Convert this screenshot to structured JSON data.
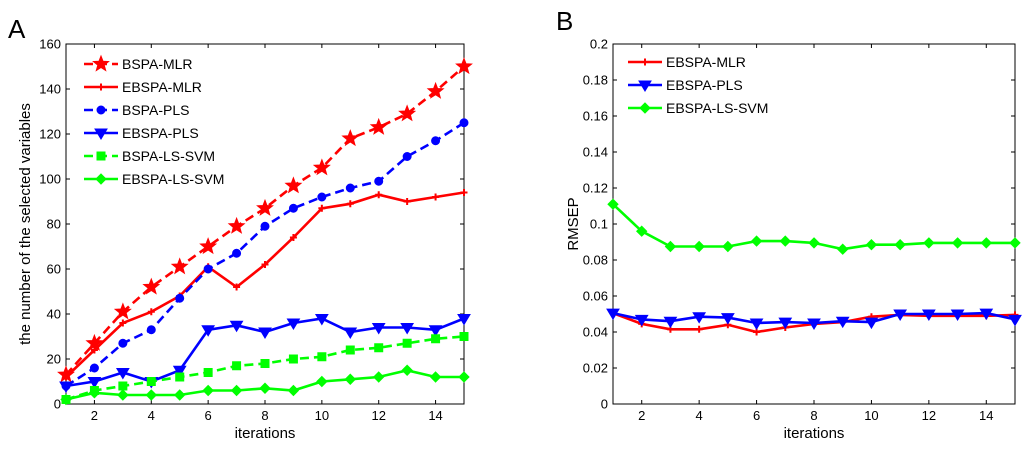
{
  "chart_data": [
    {
      "panel": "A",
      "type": "line",
      "xlabel": "iterations",
      "ylabel": "the number of the selected variables",
      "xlim": [
        1,
        15
      ],
      "ylim": [
        0,
        160
      ],
      "xticks": [
        "2",
        "4",
        "6",
        "8",
        "10",
        "12",
        "14"
      ],
      "yticks": [
        "0",
        "20",
        "40",
        "60",
        "80",
        "100",
        "120",
        "140",
        "160"
      ],
      "x": [
        1,
        2,
        3,
        4,
        5,
        6,
        7,
        8,
        9,
        10,
        11,
        12,
        13,
        14,
        15
      ],
      "series": [
        {
          "name": "BSPA-MLR",
          "color": "#ff0000",
          "dash": true,
          "marker": "star",
          "values": [
            13,
            27,
            41,
            52,
            61,
            70,
            79,
            87,
            97,
            105,
            118,
            123,
            129,
            139,
            150
          ]
        },
        {
          "name": "EBSPA-MLR",
          "color": "#ff0000",
          "dash": false,
          "marker": "plus",
          "values": [
            12,
            24,
            36,
            41,
            48,
            61,
            52,
            62,
            74,
            87,
            89,
            93,
            90,
            92,
            94
          ]
        },
        {
          "name": "BSPA-PLS",
          "color": "#0000ff",
          "dash": true,
          "marker": "circle",
          "values": [
            8,
            16,
            27,
            33,
            47,
            60,
            67,
            79,
            87,
            92,
            96,
            99,
            110,
            117,
            125
          ]
        },
        {
          "name": "EBSPA-PLS",
          "color": "#0000ff",
          "dash": false,
          "marker": "triangle-down",
          "values": [
            8,
            10,
            14,
            10,
            15,
            33,
            35,
            32,
            36,
            38,
            32,
            34,
            34,
            33,
            38
          ]
        },
        {
          "name": "BSPA-LS-SVM",
          "color": "#00ff00",
          "dash": true,
          "marker": "square",
          "values": [
            2,
            6,
            8,
            10,
            12,
            14,
            17,
            18,
            20,
            21,
            24,
            25,
            27,
            29,
            30
          ]
        },
        {
          "name": "EBSPA-LS-SVM",
          "color": "#00ff00",
          "dash": false,
          "marker": "diamond",
          "values": [
            2,
            5,
            4,
            4,
            4,
            6,
            6,
            7,
            6,
            10,
            11,
            12,
            15,
            12,
            12
          ]
        }
      ]
    },
    {
      "panel": "B",
      "type": "line",
      "xlabel": "iterations",
      "ylabel": "RMSEP",
      "xlim": [
        1,
        15
      ],
      "ylim": [
        0,
        0.2
      ],
      "xticks": [
        "2",
        "4",
        "6",
        "8",
        "10",
        "12",
        "14"
      ],
      "yticks": [
        "0",
        "0.02",
        "0.04",
        "0.06",
        "0.08",
        "0.1",
        "0.12",
        "0.14",
        "0.16",
        "0.18",
        "0.2"
      ],
      "x": [
        1,
        2,
        3,
        4,
        5,
        6,
        7,
        8,
        9,
        10,
        11,
        12,
        13,
        14,
        15
      ],
      "series": [
        {
          "name": "EBSPA-MLR",
          "color": "#ff0000",
          "dash": false,
          "marker": "plus",
          "values": [
            0.0505,
            0.0445,
            0.0415,
            0.0415,
            0.044,
            0.04,
            0.0425,
            0.0445,
            0.0455,
            0.0485,
            0.0495,
            0.049,
            0.049,
            0.049,
            0.0495
          ]
        },
        {
          "name": "EBSPA-PLS",
          "color": "#0000ff",
          "dash": false,
          "marker": "triangle-down",
          "values": [
            0.0505,
            0.047,
            0.046,
            0.0485,
            0.048,
            0.045,
            0.0455,
            0.045,
            0.046,
            0.0455,
            0.05,
            0.05,
            0.05,
            0.0505,
            0.047
          ]
        },
        {
          "name": "EBSPA-LS-SVM",
          "color": "#00ff00",
          "dash": false,
          "marker": "diamond",
          "values": [
            0.111,
            0.096,
            0.0875,
            0.0875,
            0.0875,
            0.0905,
            0.0905,
            0.0895,
            0.086,
            0.0885,
            0.0885,
            0.0895,
            0.0895,
            0.0895,
            0.0895
          ]
        }
      ]
    }
  ]
}
